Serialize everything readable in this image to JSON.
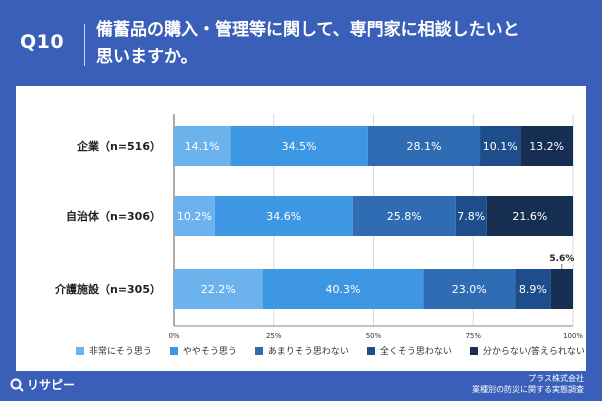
{
  "header": {
    "qnum": "Q10",
    "title_line1": "備蓄品の購入・管理等に関して、専門家に相談したいと",
    "title_line2": "思いますか。"
  },
  "footer": {
    "source_line1": "プラス株式会社",
    "source_line2": "業種別の防災に関する実態調査",
    "logo_text": "リサピー"
  },
  "colors": {
    "background": "#3a5fb8",
    "series": [
      "#6cb3ee",
      "#3d97e3",
      "#2f6cb3",
      "#1e4d8c",
      "#162e52"
    ]
  },
  "chart_data": {
    "type": "bar",
    "orientation": "horizontal",
    "stacked": true,
    "categories": [
      "企業（n=516）",
      "自治体（n=306）",
      "介護施設（n=305）"
    ],
    "series": [
      {
        "name": "非常にそう思う",
        "values": [
          14.1,
          10.2,
          22.2
        ]
      },
      {
        "name": "ややそう思う",
        "values": [
          34.5,
          34.6,
          40.3
        ]
      },
      {
        "name": "あまりそう思わない",
        "values": [
          28.1,
          25.8,
          23.0
        ]
      },
      {
        "name": "全くそう思わない",
        "values": [
          10.1,
          7.8,
          8.9
        ]
      },
      {
        "name": "分からない/答えられない",
        "values": [
          13.2,
          21.6,
          5.6
        ]
      }
    ],
    "value_labels": [
      [
        "14.1%",
        "34.5%",
        "28.1%",
        "10.1%",
        "13.2%"
      ],
      [
        "10.2%",
        "34.6%",
        "25.8%",
        "7.8%",
        "21.6%"
      ],
      [
        "22.2%",
        "40.3%",
        "23.0%",
        "8.9%",
        "5.6%"
      ]
    ],
    "xlim": [
      0,
      100
    ],
    "xticks": [
      "0%",
      "25%",
      "50%",
      "75%",
      "100%"
    ],
    "legend_position": "bottom"
  }
}
